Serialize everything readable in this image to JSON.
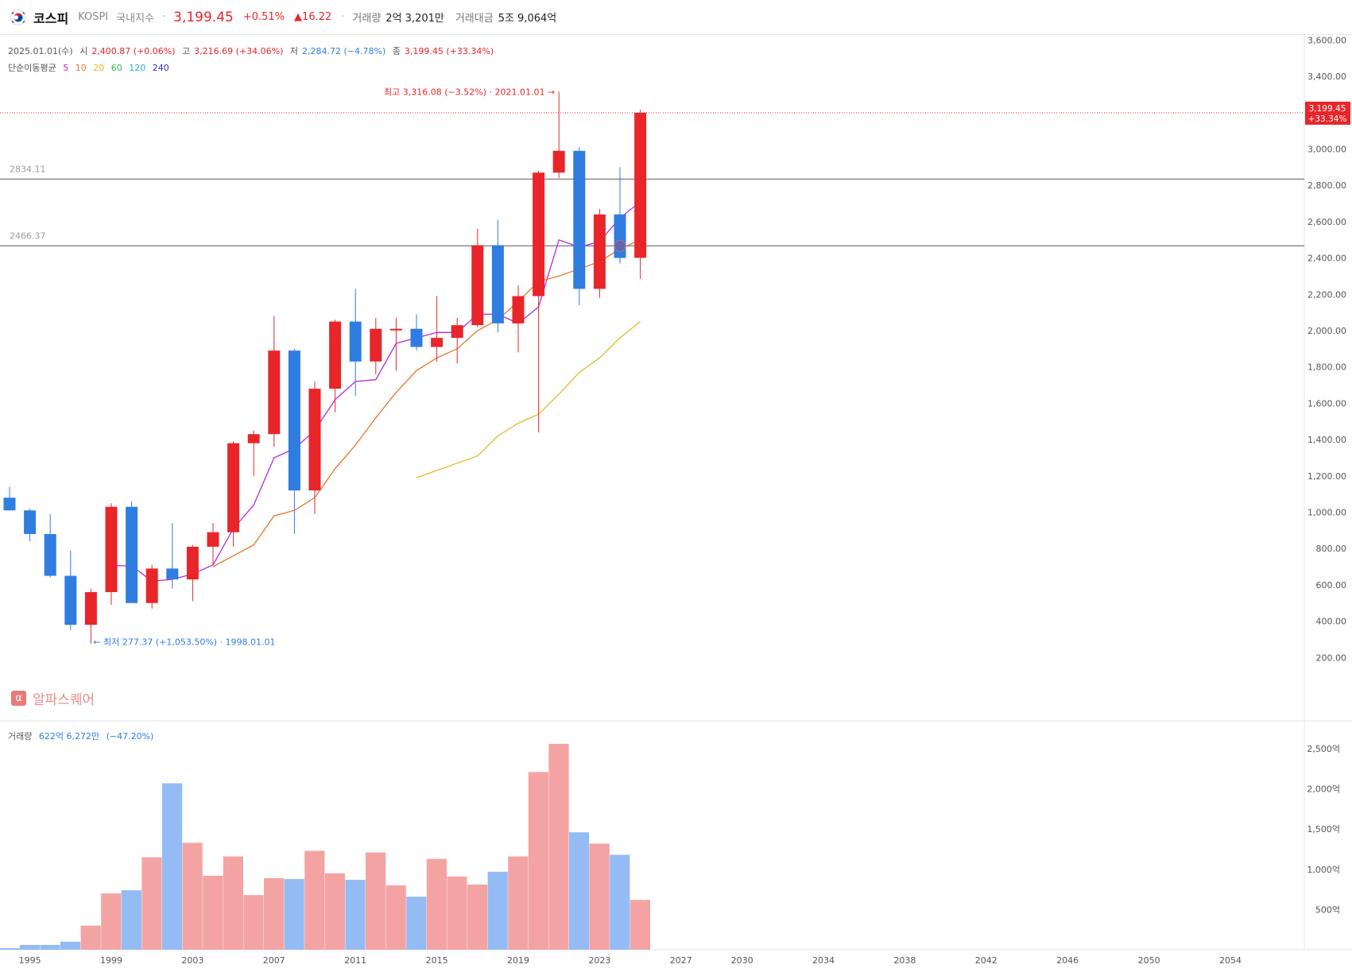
{
  "header": {
    "name": "코스피",
    "code": "KOSPI",
    "market": "국내지수",
    "price": "3,199.45",
    "change_pct": "+0.51%",
    "change_abs": "▲16.22",
    "volume_label": "거래량",
    "volume": "2억 3,201만",
    "value_label": "거래대금",
    "value": "5조 9,064억"
  },
  "ohlc": {
    "date": "2025.01.01(수)",
    "open_label": "시",
    "open": "2,400.87 (+0.06%)",
    "high_label": "고",
    "high": "3,216.69 (+34.06%)",
    "low_label": "저",
    "low": "2,284.72 (−4.78%)",
    "close_label": "종",
    "close": "3,199.45 (+33.34%)"
  },
  "ma_legend": {
    "label": "단순이동평균",
    "periods": [
      "5",
      "10",
      "20",
      "60",
      "120",
      "240"
    ],
    "colors": [
      "#b32adb",
      "#e8752a",
      "#e8b82a",
      "#3bb54a",
      "#28b6c7",
      "#2a2ad8"
    ]
  },
  "volume_legend": {
    "label": "거래량",
    "value": "622억 6,272만",
    "change": "(−47.20%)"
  },
  "watermark": "알파스퀘어",
  "annotations": {
    "high": "최고 3,316.08 (−3.52%) · 2021.01.01 →",
    "low": "← 최저 277.37 (+1,053.50%) · 1998.01.01"
  },
  "price_tag": {
    "value": "3,199.45",
    "pct": "+33.34%"
  },
  "colors": {
    "up": "#e8262a",
    "down": "#2f7de1",
    "vol_up": "#f4a3a3",
    "vol_down": "#94bbf3"
  },
  "chart_data": {
    "type": "candlestick",
    "interval": "yearly",
    "x": [
      1994,
      1995,
      1996,
      1997,
      1998,
      1999,
      2000,
      2001,
      2002,
      2003,
      2004,
      2005,
      2006,
      2007,
      2008,
      2009,
      2010,
      2011,
      2012,
      2013,
      2014,
      2015,
      2016,
      2017,
      2018,
      2019,
      2020,
      2021,
      2022,
      2023,
      2024,
      2025
    ],
    "open": [
      1080,
      1010,
      880,
      650,
      380,
      560,
      1030,
      500,
      690,
      630,
      810,
      890,
      1380,
      1430,
      1890,
      1120,
      1680,
      2050,
      1830,
      2010,
      2010,
      1910,
      1960,
      2030,
      2470,
      2040,
      2190,
      2870,
      2990,
      2230,
      2640,
      2400.87
    ],
    "high": [
      1140,
      1020,
      990,
      790,
      580,
      1050,
      1060,
      710,
      940,
      820,
      940,
      1390,
      1450,
      2080,
      1900,
      1720,
      2060,
      2230,
      2070,
      2070,
      2090,
      2190,
      2070,
      2560,
      2610,
      2250,
      2880,
      3316.08,
      3010,
      2670,
      2900,
      3216.69
    ],
    "low": [
      1010,
      840,
      640,
      350,
      277.37,
      490,
      500,
      470,
      580,
      510,
      710,
      810,
      1200,
      1360,
      880,
      990,
      1550,
      1640,
      1760,
      1780,
      1890,
      1830,
      1820,
      2020,
      1990,
      1880,
      1440,
      2840,
      2140,
      2180,
      2370,
      2284.72
    ],
    "close": [
      1010,
      880,
      650,
      380,
      560,
      1030,
      500,
      690,
      630,
      810,
      890,
      1380,
      1430,
      1890,
      1120,
      1680,
      2050,
      1830,
      2010,
      2010,
      1910,
      1960,
      2030,
      2470,
      2040,
      2190,
      2870,
      2990,
      2230,
      2640,
      2400,
      3199.45
    ],
    "volume_billion": [
      20,
      60,
      60,
      100,
      300,
      700,
      740,
      1150,
      2070,
      1330,
      920,
      1160,
      680,
      890,
      880,
      1230,
      950,
      870,
      1210,
      800,
      660,
      1130,
      910,
      810,
      970,
      1160,
      2210,
      2560,
      1460,
      1320,
      1180,
      620
    ],
    "ma5": [
      null,
      null,
      null,
      null,
      null,
      705,
      705,
      620,
      630,
      660,
      710,
      910,
      1040,
      1300,
      1350,
      1450,
      1620,
      1720,
      1730,
      1930,
      1960,
      1990,
      1990,
      2090,
      2090,
      2040,
      2130,
      2500,
      2460,
      2490,
      2620,
      2710
    ],
    "ma10": [
      null,
      null,
      null,
      null,
      null,
      null,
      null,
      null,
      null,
      null,
      700,
      760,
      820,
      980,
      1010,
      1080,
      1240,
      1370,
      1520,
      1660,
      1780,
      1850,
      1900,
      2000,
      2060,
      2160,
      2270,
      2300,
      2340,
      2380,
      2450,
      2500
    ],
    "ma20": [
      null,
      null,
      null,
      null,
      null,
      null,
      null,
      null,
      null,
      null,
      null,
      null,
      null,
      null,
      null,
      null,
      null,
      null,
      null,
      null,
      1190,
      1230,
      1270,
      1310,
      1420,
      1490,
      1540,
      1650,
      1770,
      1850,
      1960,
      2050
    ],
    "hlines": [
      2834.11,
      2466.37
    ],
    "hline_labels": [
      "2834.11",
      "2466.37"
    ],
    "price_line": 3199.45,
    "price_ticks": [
      "3,600.00",
      "3,400.00",
      "3,000.00",
      "2,800.00",
      "2,600.00",
      "2,400.00",
      "2,200.00",
      "2,000.00",
      "1,800.00",
      "1,600.00",
      "1,400.00",
      "1,200.00",
      "1,000.00",
      "800.00",
      "600.00",
      "400.00",
      "200.00"
    ],
    "price_tick_values": [
      3600,
      3400,
      3000,
      2800,
      2600,
      2400,
      2200,
      2000,
      1800,
      1600,
      1400,
      1200,
      1000,
      800,
      600,
      400,
      200
    ],
    "volume_ticks": [
      "2,500억",
      "2,000억",
      "1,500억",
      "1,000억",
      "500억"
    ],
    "volume_tick_values": [
      2500,
      2000,
      1500,
      1000,
      500
    ],
    "x_ticks": [
      "1995",
      "1999",
      "2003",
      "2007",
      "2011",
      "2015",
      "2019",
      "2023",
      "2027",
      "2030",
      "2034",
      "2038",
      "2042",
      "2046",
      "2050",
      "2054"
    ],
    "x_tick_years": [
      1995,
      1999,
      2003,
      2007,
      2011,
      2015,
      2019,
      2023,
      2027,
      2030,
      2034,
      2038,
      2042,
      2046,
      2050,
      2054
    ]
  }
}
